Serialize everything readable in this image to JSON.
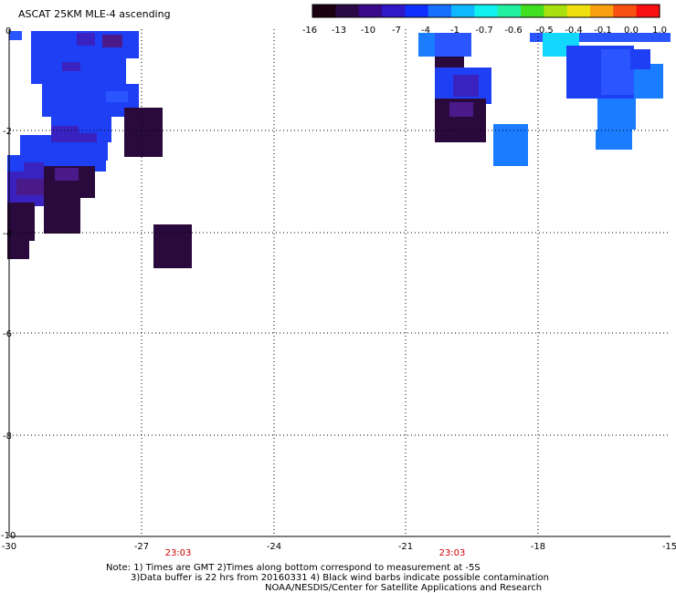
{
  "title": "ASCAT 25KM MLE-4 ascending",
  "colorbar": {
    "labels": [
      "-16",
      "-13",
      "-10",
      "-7",
      "-4",
      "-1",
      "-0.7",
      "-0.6",
      "-0.5",
      "-0.4",
      "-0.1",
      "0.0",
      "1.0"
    ],
    "colors": [
      "#1a0010",
      "#2a0a45",
      "#3a0a8a",
      "#3018c8",
      "#1030ff",
      "#1870ff",
      "#10b8ff",
      "#10f0ee",
      "#20f0a0",
      "#40e020",
      "#a8e010",
      "#f0e010",
      "#f8a010",
      "#f85010",
      "#f81010"
    ]
  },
  "axes": {
    "x_ticks": [
      "-30",
      "-27",
      "-24",
      "-21",
      "-18",
      "-15"
    ],
    "y_ticks": [
      "0",
      "-2",
      "-4",
      "-6",
      "-8",
      "-10"
    ],
    "xlim": [
      -30,
      -15
    ],
    "ylim": [
      -10,
      0
    ],
    "grid": true
  },
  "times": [
    "23:03",
    "23:03"
  ],
  "notes": [
    "Note: 1) Times are GMT 2)Times along bottom correspond to measurement at -5S",
    "3)Data buffer is 22 hrs from 20160331 4) Black wind barbs indicate possible contamination",
    "NOAA/NESDIS/Center for Satellite Applications and Research"
  ],
  "colors": {
    "c_dark": "#2a0a3c",
    "c_purple": "#4a1a8a",
    "c_violet": "#3a22c0",
    "c_blue": "#1f3ff5",
    "c_royal": "#2a55ff",
    "c_sky": "#1a7cff",
    "c_cyan": "#19b8ff",
    "c_aqua": "#12d8ff"
  }
}
